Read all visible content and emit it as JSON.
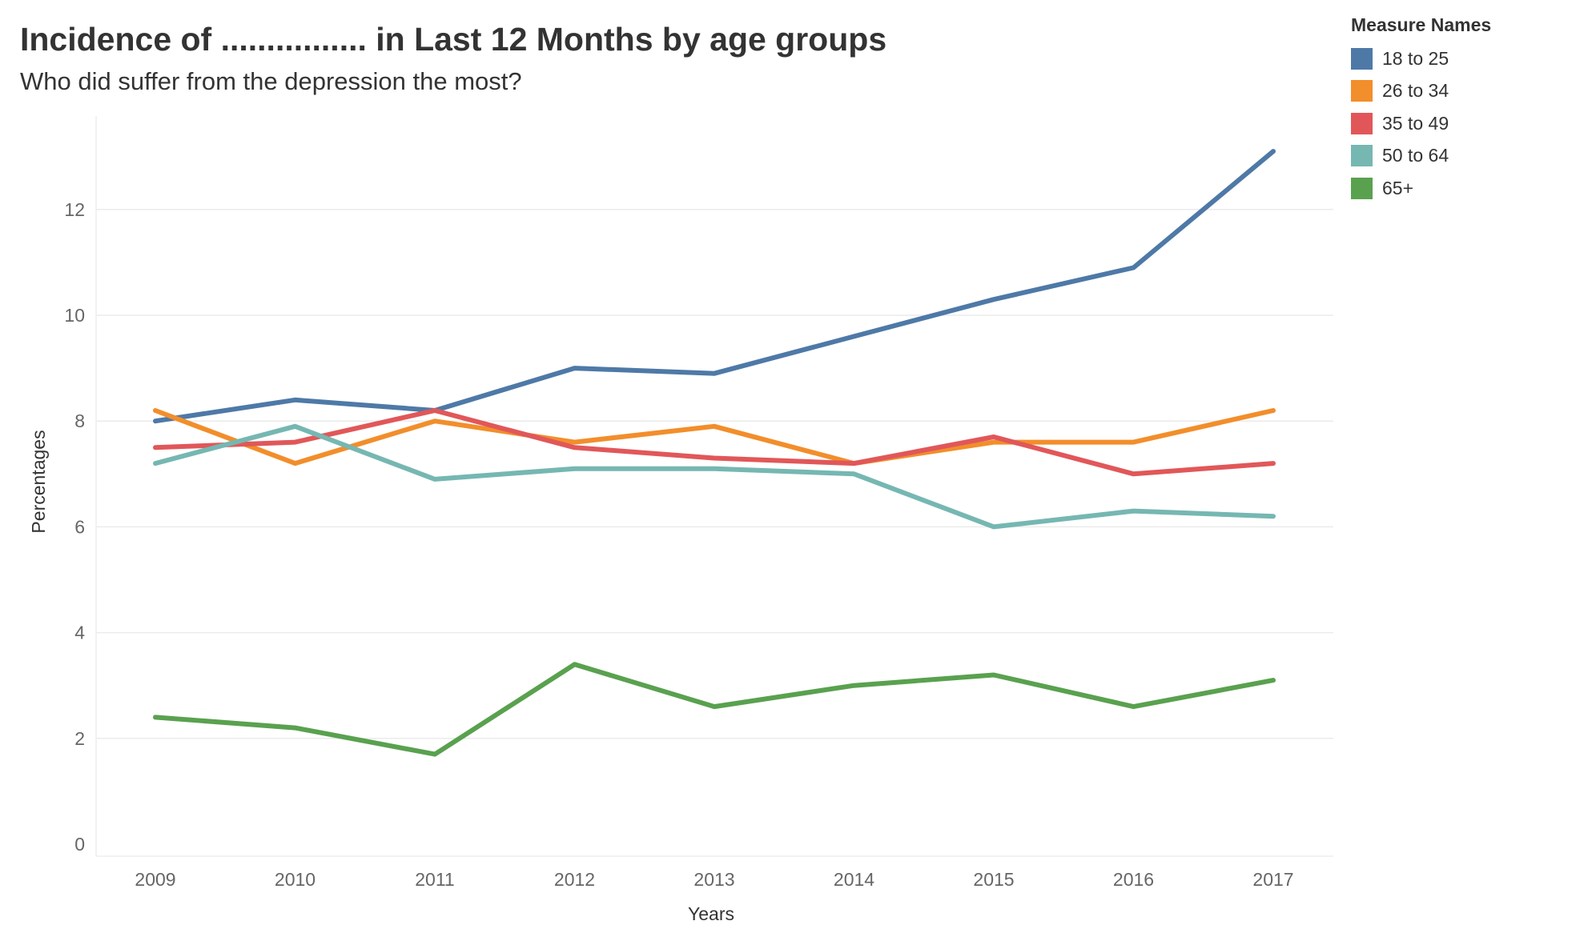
{
  "chart_data": {
    "type": "line",
    "title": "Incidence of ................ in Last 12 Months by age groups",
    "subtitle": "Who did suffer from the depression the most?",
    "xlabel": "Years",
    "ylabel": "Percentages",
    "x": [
      "2009",
      "2010",
      "2011",
      "2012",
      "2013",
      "2014",
      "2015",
      "2016",
      "2017"
    ],
    "yticks": [
      0,
      2,
      4,
      6,
      8,
      10,
      12
    ],
    "ylim": [
      0,
      13.9
    ],
    "grid": true,
    "legend_title": "Measure Names",
    "legend_position": "top-right",
    "series": [
      {
        "name": "18 to 25",
        "color": "#4e79a7",
        "values": [
          8.0,
          8.4,
          8.2,
          9.0,
          8.9,
          9.6,
          10.3,
          10.9,
          13.1
        ]
      },
      {
        "name": "26 to 34",
        "color": "#f28e2b",
        "values": [
          8.2,
          7.2,
          8.0,
          7.6,
          7.9,
          7.2,
          7.6,
          7.6,
          8.2
        ]
      },
      {
        "name": "35 to 49",
        "color": "#e15759",
        "values": [
          7.5,
          7.6,
          8.2,
          7.5,
          7.3,
          7.2,
          7.7,
          7.0,
          7.2
        ]
      },
      {
        "name": "50 to 64",
        "color": "#76b7b2",
        "values": [
          7.2,
          7.9,
          6.9,
          7.1,
          7.1,
          7.0,
          6.0,
          6.3,
          6.2
        ]
      },
      {
        "name": "65+",
        "color": "#59a14f",
        "values": [
          2.4,
          2.2,
          1.7,
          3.4,
          2.6,
          3.0,
          3.2,
          2.6,
          3.1
        ]
      }
    ]
  }
}
